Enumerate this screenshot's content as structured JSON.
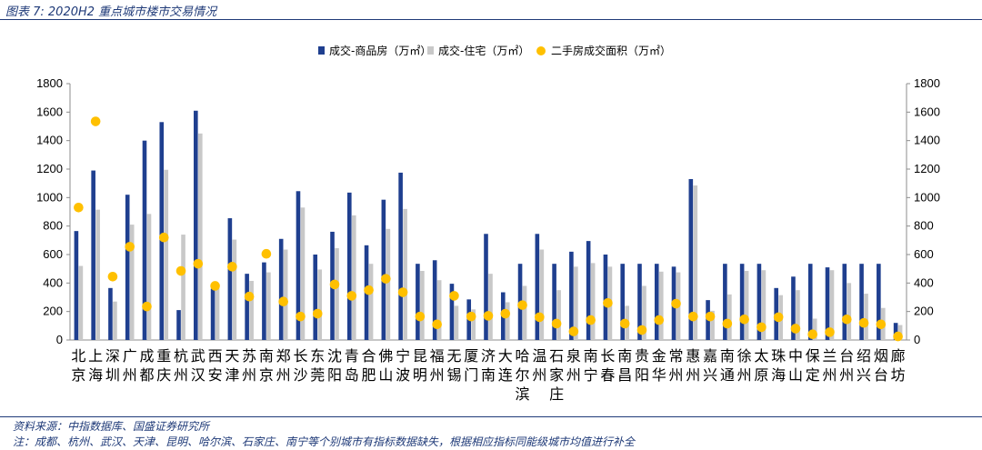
{
  "figure": {
    "title": "图表 7:  2020H2 重点城市楼市交易情况",
    "source": "资料来源：中指数据库、国盛证券研究所",
    "note": "注：成都、杭州、武汉、天津、昆明、哈尔滨、石家庄、南宁等个别城市有指标数据缺失，根据相应指标同能级城市均值进行补全"
  },
  "colors": {
    "primary_bar": "#1f3f8f",
    "secondary_bar": "#c8c8c8",
    "dots": "#ffc000",
    "frame": "#1f3a78"
  },
  "chart_data": {
    "type": "bar",
    "categories": [
      "北京",
      "上海",
      "深圳",
      "广州",
      "成都",
      "重庆",
      "杭州",
      "武汉",
      "西安",
      "天津",
      "苏州",
      "南京",
      "郑州",
      "长沙",
      "东莞",
      "沈阳",
      "青岛",
      "合肥",
      "佛山",
      "宁波",
      "昆明",
      "福州",
      "无锡",
      "厦门",
      "济南",
      "大连",
      "哈尔滨",
      "温州",
      "石家庄",
      "泉州",
      "南宁",
      "长春",
      "南昌",
      "贵阳",
      "金华",
      "常州",
      "惠州",
      "嘉兴",
      "南通",
      "徐州",
      "太原",
      "珠海",
      "中山",
      "保定",
      "兰州",
      "台州",
      "绍兴",
      "烟台",
      "廊坊"
    ],
    "series": [
      {
        "name": "成交-商品房（万㎡）",
        "type": "bar",
        "axis": "left",
        "values": [
          765,
          1190,
          365,
          1020,
          1400,
          1530,
          210,
          1610,
          360,
          855,
          465,
          545,
          710,
          1045,
          600,
          760,
          1035,
          665,
          985,
          1175,
          535,
          560,
          395,
          285,
          745,
          335,
          535,
          745,
          535,
          620,
          695,
          600,
          535,
          535,
          535,
          515,
          1130,
          280,
          535,
          535,
          535,
          365,
          445,
          535,
          510,
          535,
          535,
          535,
          120
        ]
      },
      {
        "name": "成交-住宅（万㎡）",
        "type": "bar",
        "axis": "left",
        "values": [
          520,
          915,
          270,
          810,
          885,
          1195,
          740,
          1450,
          375,
          705,
          415,
          475,
          635,
          930,
          495,
          645,
          875,
          535,
          780,
          920,
          485,
          420,
          240,
          215,
          465,
          265,
          380,
          635,
          350,
          515,
          540,
          515,
          240,
          380,
          480,
          475,
          1085,
          205,
          320,
          485,
          490,
          315,
          350,
          150,
          490,
          400,
          325,
          225,
          105
        ]
      },
      {
        "name": "二手房成交面积（万㎡）",
        "type": "scatter",
        "axis": "right",
        "values": [
          930,
          1535,
          445,
          655,
          235,
          720,
          485,
          535,
          380,
          515,
          305,
          605,
          270,
          165,
          185,
          390,
          310,
          350,
          430,
          335,
          165,
          110,
          310,
          165,
          170,
          185,
          245,
          160,
          115,
          60,
          140,
          260,
          115,
          70,
          140,
          255,
          165,
          165,
          115,
          145,
          90,
          160,
          80,
          40,
          55,
          145,
          120,
          110,
          25
        ]
      }
    ],
    "ylim": [
      0,
      1800
    ],
    "y2lim": [
      0,
      1800
    ],
    "yticks": [
      "0",
      "200",
      "400",
      "600",
      "800",
      "1000",
      "1200",
      "1400",
      "1600",
      "1800"
    ],
    "legend_position": "top-center",
    "grid": false
  }
}
